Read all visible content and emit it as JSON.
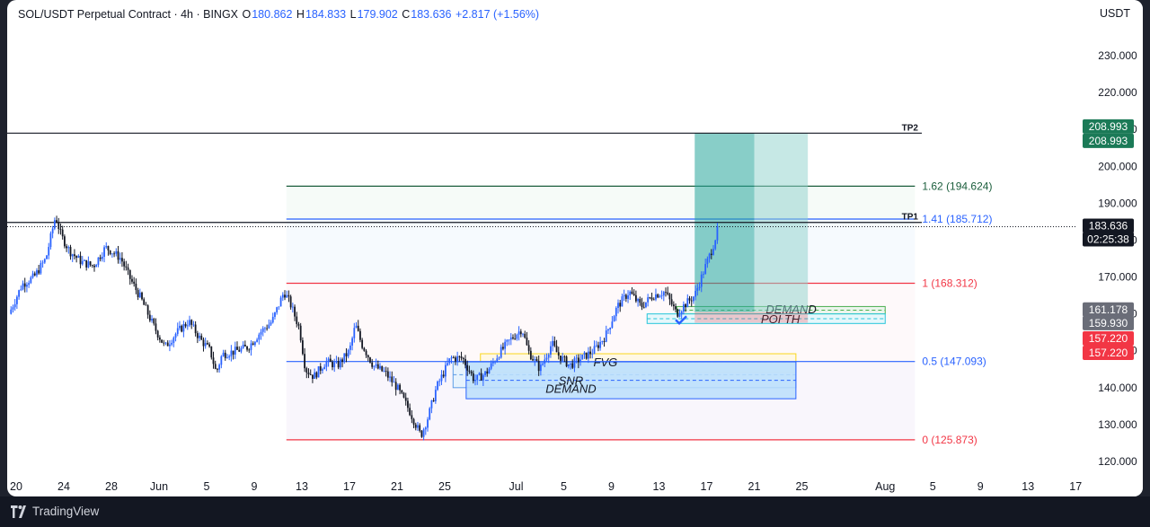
{
  "header": {
    "symbol": "SOL/USDT Perpetual Contract · 4h · BINGX",
    "o_label": "O",
    "o_value": "180.862",
    "h_label": "H",
    "h_value": "184.833",
    "l_label": "L",
    "l_value": "179.902",
    "c_label": "C",
    "c_value": "183.636",
    "change": "+2.817 (+1.56%)"
  },
  "currency": "USDT",
  "footer": {
    "brand": "TradingView"
  },
  "colors": {
    "up": "#2962ff",
    "down": "#131722",
    "fib_red": "#f23645",
    "fib_blue": "#2962ff",
    "fib_green": "#1b5e3c",
    "target": "#26a69a",
    "stop": "#f23645"
  },
  "chart_data": {
    "type": "candlestick",
    "ylim": [
      115,
      240
    ],
    "y_ticks": [
      "230.000",
      "220.000",
      "210.000",
      "200.000",
      "190.000",
      "180.000",
      "170.000",
      "160.000",
      "150.000",
      "140.000",
      "130.000",
      "120.000"
    ],
    "y_tick_values": [
      230,
      220,
      210,
      200,
      190,
      180,
      170,
      160,
      150,
      140,
      130,
      120
    ],
    "x_ticks": [
      {
        "label": "20",
        "day": 20
      },
      {
        "label": "24",
        "day": 24
      },
      {
        "label": "28",
        "day": 28
      },
      {
        "label": "Jun",
        "day": 32
      },
      {
        "label": "5",
        "day": 36
      },
      {
        "label": "9",
        "day": 40
      },
      {
        "label": "13",
        "day": 44
      },
      {
        "label": "17",
        "day": 48
      },
      {
        "label": "21",
        "day": 52
      },
      {
        "label": "25",
        "day": 56
      },
      {
        "label": "Jul",
        "day": 62
      },
      {
        "label": "5",
        "day": 66
      },
      {
        "label": "9",
        "day": 70
      },
      {
        "label": "13",
        "day": 74
      },
      {
        "label": "17",
        "day": 78
      },
      {
        "label": "21",
        "day": 82
      },
      {
        "label": "25",
        "day": 86
      },
      {
        "label": "Aug",
        "day": 93
      },
      {
        "label": "5",
        "day": 97
      },
      {
        "label": "9",
        "day": 101
      },
      {
        "label": "13",
        "day": 105
      },
      {
        "label": "17",
        "day": 109
      }
    ],
    "close_path": [
      [
        19.4,
        160
      ],
      [
        20.5,
        168
      ],
      [
        21.5,
        170
      ],
      [
        22.5,
        175
      ],
      [
        23.3,
        186.5
      ],
      [
        23.8,
        181
      ],
      [
        24.5,
        177
      ],
      [
        25.5,
        174
      ],
      [
        26.5,
        173
      ],
      [
        27.5,
        178
      ],
      [
        28,
        177
      ],
      [
        28.8,
        175
      ],
      [
        29.5,
        170
      ],
      [
        30.5,
        164
      ],
      [
        31.5,
        157
      ],
      [
        32.5,
        151
      ],
      [
        33.5,
        155
      ],
      [
        34.5,
        158
      ],
      [
        35.5,
        153
      ],
      [
        36.3,
        150
      ],
      [
        36.8,
        144
      ],
      [
        37.3,
        149
      ],
      [
        38.5,
        150
      ],
      [
        39.5,
        151
      ],
      [
        40.5,
        155
      ],
      [
        41.5,
        158
      ],
      [
        42.5,
        166
      ],
      [
        43,
        163
      ],
      [
        43.8,
        156
      ],
      [
        44.3,
        145
      ],
      [
        45,
        143
      ],
      [
        46,
        147
      ],
      [
        47,
        146
      ],
      [
        48,
        150
      ],
      [
        48.5,
        157
      ],
      [
        49,
        152
      ],
      [
        50,
        146
      ],
      [
        51,
        144
      ],
      [
        52,
        140
      ],
      [
        53,
        134
      ],
      [
        54,
        127
      ],
      [
        54.6,
        132
      ],
      [
        55.3,
        140
      ],
      [
        56.5,
        148
      ],
      [
        57.5,
        148
      ],
      [
        58.5,
        142
      ],
      [
        59.5,
        144
      ],
      [
        60.5,
        149
      ],
      [
        61.5,
        153
      ],
      [
        62.5,
        156
      ],
      [
        63,
        150
      ],
      [
        64,
        145
      ],
      [
        65,
        152
      ],
      [
        65.5,
        149
      ],
      [
        66.5,
        146
      ],
      [
        67.5,
        148
      ],
      [
        68.5,
        150
      ],
      [
        69.5,
        154
      ],
      [
        70.5,
        162
      ],
      [
        71.5,
        166
      ],
      [
        72.5,
        162
      ],
      [
        73.5,
        165
      ],
      [
        74.5,
        166
      ],
      [
        75.5,
        160
      ],
      [
        76,
        162
      ],
      [
        77,
        165
      ],
      [
        77.8,
        172
      ],
      [
        78.5,
        178
      ],
      [
        79,
        183.6
      ]
    ],
    "fib_levels": [
      {
        "label": "0 (125.873)",
        "value": 125.873,
        "color": "#f23645"
      },
      {
        "label": "0.5 (147.093)",
        "value": 147.093,
        "color": "#2962ff"
      },
      {
        "label": "1 (168.312)",
        "value": 168.312,
        "color": "#f23645"
      },
      {
        "label": "1.41 (185.712)",
        "value": 185.712,
        "color": "#2962ff"
      },
      {
        "label": "1.62 (194.624)",
        "value": 194.624,
        "color": "#1b5e3c"
      }
    ],
    "fib_x_range_days": [
      42.7,
      95.5
    ],
    "tp_lines": [
      {
        "label": "TP2",
        "value": 208.993
      },
      {
        "label": "TP1",
        "value": 184.8
      }
    ],
    "zones": [
      {
        "label": "DEMAND",
        "y0": 160,
        "y1": 162,
        "day0": 75.5,
        "day1": 93,
        "fill": "#e8f5e9",
        "stroke": "#4caf50"
      },
      {
        "label": "POI TH",
        "y0": 157.4,
        "y1": 160,
        "day0": 73,
        "day1": 93,
        "fill": "#e0f7fa",
        "stroke": "#26c6da"
      },
      {
        "label": "FVG",
        "y0": 144.2,
        "y1": 149.2,
        "day0": 59,
        "day1": 85.5,
        "fill": "#fff8e1",
        "stroke": "#f9d71c"
      },
      {
        "label": "SNR",
        "y0": 140,
        "y1": 147,
        "day0": 56.7,
        "day1": 85.5,
        "fill": "#e3f2fd",
        "stroke": "#5c9ce6"
      },
      {
        "label": "DEMAND",
        "y0": 137,
        "y1": 147,
        "day0": 57.8,
        "day1": 85.5,
        "fill": "#bbdefb",
        "stroke": "#2962ff"
      }
    ],
    "position": {
      "entry": 160.5,
      "target": 208.993,
      "day0": 77,
      "day1": 86.5
    },
    "labels": {
      "price_current": "183.636",
      "countdown": "02:25:38",
      "tp_price_a": "208.993",
      "tp_price_b": "208.993",
      "gray_a": "161.178",
      "gray_b": "159.930",
      "red_a": "157.220",
      "red_b": "157.220"
    }
  }
}
